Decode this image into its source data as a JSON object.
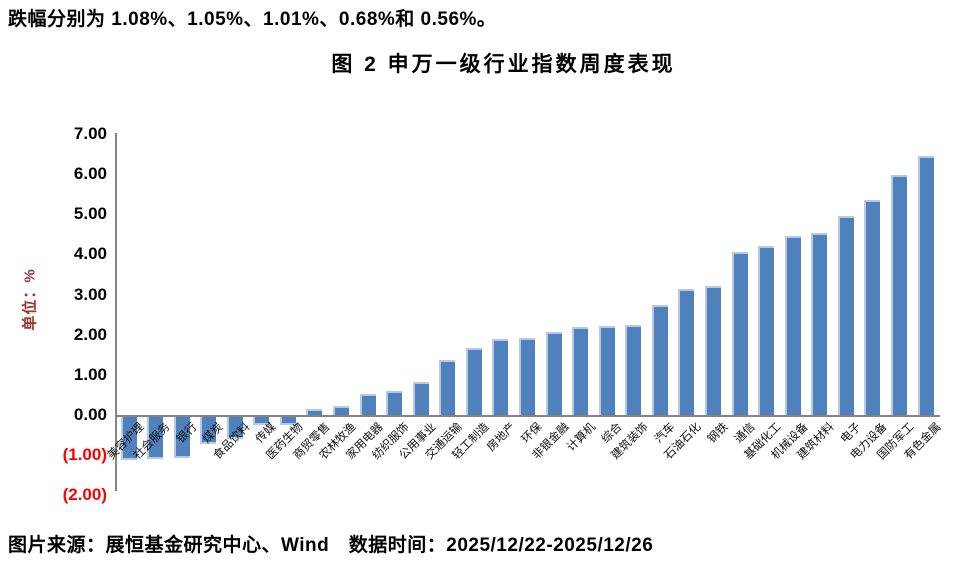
{
  "intro_text": "跌幅分别为 1.08%、1.05%、1.01%、0.68%和 0.56%。",
  "chart": {
    "title": "图 2 申万一级行业指数周度表现",
    "y_axis_title": "单位：%",
    "y_ticks": [
      {
        "label": "7.00",
        "value": 7
      },
      {
        "label": "6.00",
        "value": 6
      },
      {
        "label": "5.00",
        "value": 5
      },
      {
        "label": "4.00",
        "value": 4
      },
      {
        "label": "3.00",
        "value": 3
      },
      {
        "label": "2.00",
        "value": 2
      },
      {
        "label": "1.00",
        "value": 1
      },
      {
        "label": "0.00",
        "value": 0
      },
      {
        "label": "(1.00)",
        "value": -1
      },
      {
        "label": "(2.00)",
        "value": -2
      }
    ]
  },
  "chart_data": {
    "type": "bar",
    "title": "图 2 申万一级行业指数周度表现",
    "xlabel": "",
    "ylabel": "单位：%",
    "ylim": [
      -2,
      7
    ],
    "grid": false,
    "legend": "none",
    "bar_color": "#4F81BD",
    "axis_color": "#848484",
    "negative_tick_color": "#FF0000",
    "categories": [
      "美容护理",
      "社会服务",
      "银行",
      "煤炭",
      "食品饮料",
      "传媒",
      "医药生物",
      "商贸零售",
      "农林牧渔",
      "家用电器",
      "纺织服饰",
      "公用事业",
      "交通运输",
      "轻工制造",
      "房地产",
      "环保",
      "非银金融",
      "计算机",
      "综合",
      "建筑装饰",
      "汽车",
      "石油石化",
      "钢铁",
      "通信",
      "基础化工",
      "机械设备",
      "建筑材料",
      "电子",
      "电力设备",
      "国防军工",
      "有色金属"
    ],
    "values": [
      -1.08,
      -1.05,
      -1.01,
      -0.68,
      -0.56,
      -0.21,
      -0.2,
      0.14,
      0.23,
      0.52,
      0.59,
      0.82,
      1.36,
      1.68,
      1.9,
      1.92,
      2.08,
      2.18,
      2.22,
      2.25,
      2.73,
      3.15,
      3.21,
      4.05,
      4.2,
      4.47,
      4.53,
      4.95,
      5.35,
      5.98,
      6.45
    ]
  },
  "footer": {
    "text": "图片来源：展恒基金研究中心、Wind　数据时间：2025/12/22-2025/12/26"
  }
}
